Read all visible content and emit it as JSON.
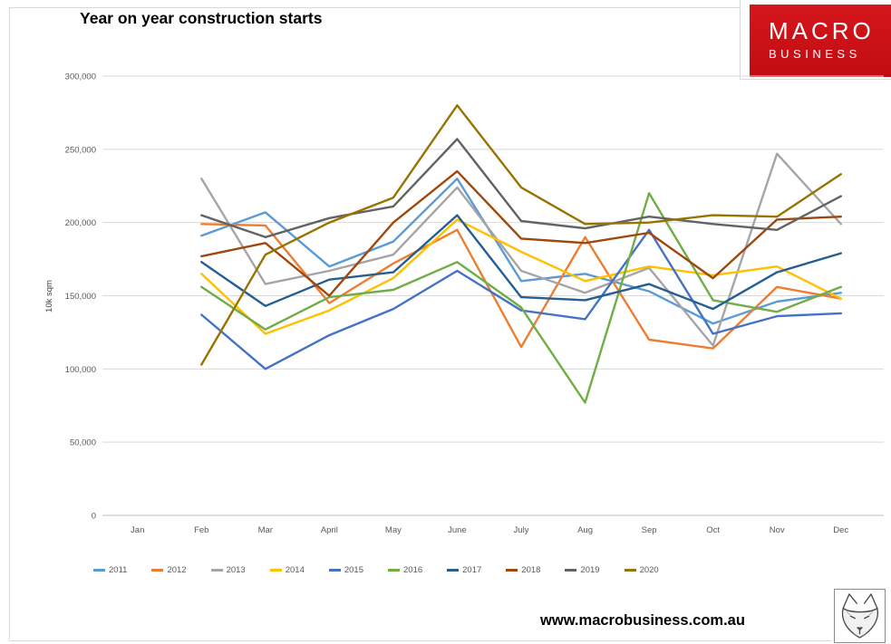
{
  "header": {
    "title": "Year on year construction starts",
    "logo": {
      "line1": "MACRO",
      "line2": "BUSINESS",
      "bg_color": "#C81014"
    }
  },
  "footer": {
    "url": "www.macrobusiness.com.au",
    "logo_icon": "wolf-sketch-icon"
  },
  "colors": {
    "gridline": "#D9D9D9",
    "axis_line": "#BFBFBF",
    "tick_text": "#595959"
  },
  "chart_data": {
    "type": "line",
    "title": "Year on year construction starts",
    "xlabel": "",
    "ylabel": "10k sqm",
    "ylim": [
      0,
      300000
    ],
    "ytick_step": 50000,
    "ytick_labels": [
      "0",
      "50,000",
      "100,000",
      "150,000",
      "200,000",
      "250,000",
      "300,000"
    ],
    "grid": true,
    "legend_position": "bottom",
    "categories": [
      "Jan",
      "Feb",
      "Mar",
      "April",
      "May",
      "June",
      "July",
      "Aug",
      "Sep",
      "Oct",
      "Nov",
      "Dec"
    ],
    "series": [
      {
        "name": "2011",
        "color": "#5B9BD5",
        "values": [
          null,
          191000,
          207000,
          170000,
          187000,
          230000,
          160000,
          165000,
          153000,
          131000,
          146000,
          152000
        ]
      },
      {
        "name": "2012",
        "color": "#ED7D31",
        "values": [
          null,
          199000,
          198000,
          145000,
          172000,
          195000,
          115000,
          190000,
          120000,
          114000,
          156000,
          148000
        ]
      },
      {
        "name": "2013",
        "color": "#A5A5A5",
        "values": [
          null,
          230000,
          158000,
          167000,
          178000,
          224000,
          167000,
          152000,
          169000,
          116000,
          247000,
          199000
        ]
      },
      {
        "name": "2014",
        "color": "#FFC000",
        "values": [
          null,
          165000,
          124000,
          140000,
          162000,
          202000,
          180000,
          160000,
          170000,
          164000,
          170000,
          148000
        ]
      },
      {
        "name": "2015",
        "color": "#4472C4",
        "values": [
          null,
          137000,
          100000,
          123000,
          141000,
          167000,
          140000,
          134000,
          195000,
          124000,
          136000,
          138000
        ]
      },
      {
        "name": "2016",
        "color": "#70AD47",
        "values": [
          null,
          156000,
          127000,
          149000,
          154000,
          173000,
          142000,
          77000,
          220000,
          147000,
          139000,
          156000
        ]
      },
      {
        "name": "2017",
        "color": "#255E91",
        "values": [
          null,
          173000,
          143000,
          161000,
          166000,
          205000,
          149000,
          147000,
          158000,
          141000,
          166000,
          179000
        ]
      },
      {
        "name": "2018",
        "color": "#9E480E",
        "values": [
          null,
          177000,
          186000,
          150000,
          200000,
          235000,
          189000,
          186000,
          193000,
          162000,
          202000,
          204000
        ]
      },
      {
        "name": "2019",
        "color": "#636363",
        "values": [
          null,
          205000,
          190000,
          203000,
          211000,
          257000,
          201000,
          196000,
          204000,
          199000,
          195000,
          218000
        ]
      },
      {
        "name": "2020",
        "color": "#997300",
        "values": [
          null,
          103000,
          178000,
          200000,
          217000,
          280000,
          224000,
          199000,
          200000,
          205000,
          204000,
          233000
        ]
      }
    ]
  }
}
